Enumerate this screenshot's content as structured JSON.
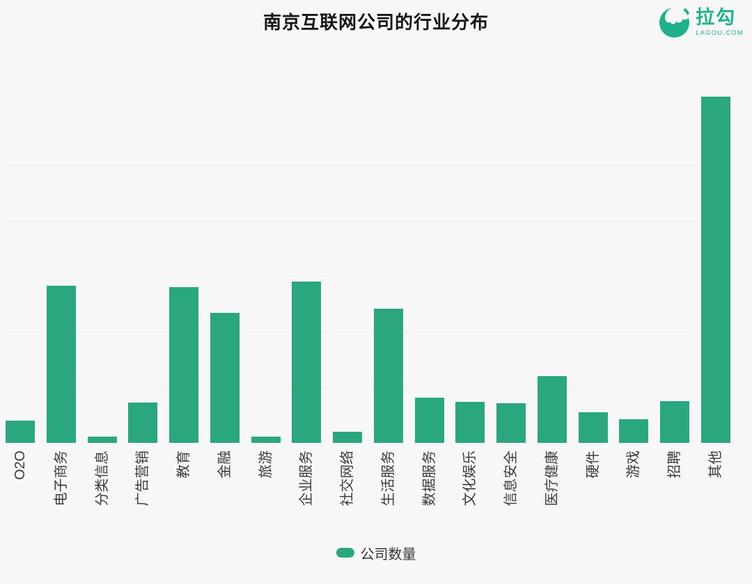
{
  "logo": {
    "brand": "拉勾",
    "domain": "LAGOU.COM",
    "color": "#1fb18c"
  },
  "colors": {
    "background": "#f7f7f7",
    "bar": "#2aa77e",
    "gridline": "#efefef",
    "axis_label_text": "#3b3b3b"
  },
  "chart_data": {
    "type": "bar",
    "title": "南京互联网公司的行业分布",
    "categories": [
      "O2O",
      "电子商务",
      "分类信息",
      "广告营销",
      "教育",
      "金融",
      "旅游",
      "企业服务",
      "社交网络",
      "生活服务",
      "数据服务",
      "文化娱乐",
      "信息安全",
      "医疗健康",
      "硬件",
      "游戏",
      "招聘",
      "其他"
    ],
    "series": [
      {
        "name": "公司数量",
        "values": [
          32,
          226,
          9,
          58,
          224,
          187,
          9,
          232,
          16,
          193,
          65,
          59,
          57,
          96,
          44,
          34,
          60,
          498
        ]
      }
    ],
    "value_scale": "relative units — no y-axis tick labels are shown in the source image",
    "xlabel": "",
    "ylabel": "",
    "ylim": [
      0,
      540
    ],
    "grid": "faint horizontal gridlines, spacing 80 units, no visible axis lines",
    "legend_position": "bottom-center",
    "x_label_rotation_deg": 90,
    "bar_color": "#2aa77e"
  }
}
